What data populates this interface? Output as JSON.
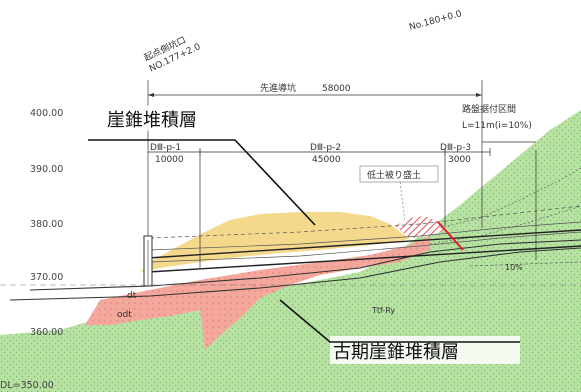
{
  "colors": {
    "ground": "#b8e2a4",
    "ground_dots": "#7fbf68",
    "upper_talus": "#f4d98c",
    "lower_talus": "#f4a79c",
    "embankment_hatch": "#e0505a",
    "red_marker": "#e0202a",
    "line": "#333333"
  },
  "elevations": {
    "e400": "400.00",
    "e390": "390.00",
    "e380": "380.00",
    "e370": "370.00",
    "e360": "360.00",
    "datum": "DL=350.00"
  },
  "stations": {
    "start_portal_label": "起点側坑口",
    "start_portal_no": "NO.177+2.0",
    "end_station": "No.180+0.0"
  },
  "pilot_tunnel": {
    "label": "先進導坑",
    "length": "58000"
  },
  "segments": [
    {
      "code": "DⅢ-p-1",
      "length": "10000"
    },
    {
      "code": "DⅢ-p-2",
      "length": "45000"
    },
    {
      "code": "DⅢ-p-3",
      "length": "3000"
    }
  ],
  "footing_zone": {
    "line1": "路盤据付区間",
    "line2": "L=11m(i=10%)"
  },
  "embankment_label": "低土被り盛土",
  "slope_label": "10%",
  "layer_codes": {
    "dt": "dt",
    "odt": "odt",
    "tuff": "Ttf-Ry"
  },
  "callouts": {
    "upper_talus": "崖錐堆積層",
    "lower_talus": "古期崖錐堆積層"
  }
}
